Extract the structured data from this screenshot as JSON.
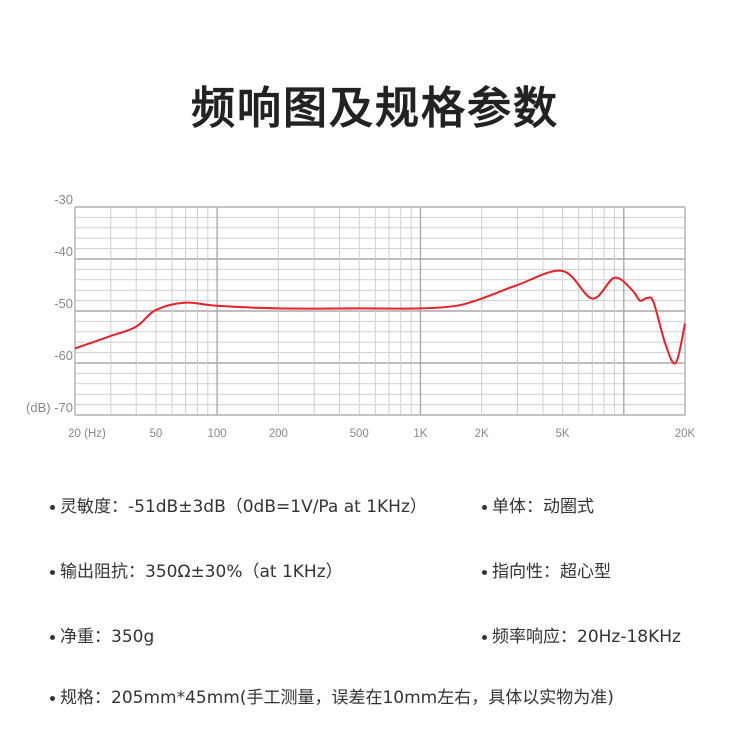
{
  "title": "频响图及规格参数",
  "chart_data": {
    "type": "line",
    "title": "",
    "xlabel": "",
    "ylabel": "",
    "x_scale": "log",
    "xlim": [
      20,
      20000
    ],
    "ylim": [
      -70,
      -30
    ],
    "grid": true,
    "x_tick_labels": [
      {
        "value": 20,
        "label": "20 (Hz)"
      },
      {
        "value": 50,
        "label": "50"
      },
      {
        "value": 100,
        "label": "100"
      },
      {
        "value": 200,
        "label": "200"
      },
      {
        "value": 500,
        "label": "500"
      },
      {
        "value": 1000,
        "label": "1K"
      },
      {
        "value": 2000,
        "label": "2K"
      },
      {
        "value": 5000,
        "label": "5K"
      },
      {
        "value": 20000,
        "label": "20K"
      }
    ],
    "y_tick_labels": [
      {
        "value": -30,
        "label": "-30"
      },
      {
        "value": -40,
        "label": "-40"
      },
      {
        "value": -50,
        "label": "-50"
      },
      {
        "value": -60,
        "label": "-60"
      },
      {
        "value": -70,
        "label": "(dB) -70"
      }
    ],
    "series": [
      {
        "color": "#e8202a",
        "x": [
          20,
          30,
          40,
          50,
          70,
          100,
          200,
          500,
          1000,
          1500,
          2000,
          3000,
          5000,
          7000,
          9000,
          11000,
          12000,
          13000,
          14000,
          16000,
          18000,
          20000
        ],
        "y": [
          -57.2,
          -54.8,
          -53,
          -49.8,
          -48.4,
          -49,
          -49.5,
          -49.5,
          -49.5,
          -49,
          -47.6,
          -45,
          -42.3,
          -47.6,
          -43.6,
          -46,
          -48,
          -47.5,
          -48.3,
          -56.3,
          -60,
          -52.4
        ]
      }
    ]
  },
  "specs": [
    {
      "text": "灵敏度：-51dB±3dB（0dB=1V/Pa at 1KHz）"
    },
    {
      "text": "单体：动圈式"
    },
    {
      "text": "输出阻抗：350Ω±30%（at 1KHz）"
    },
    {
      "text": "指向性：超心型"
    },
    {
      "text": "净重：350g"
    },
    {
      "text": "频率响应：20Hz-18KHz"
    },
    {
      "text": "规格：205mm*45mm(手工测量，误差在10mm左右，具体以实物为准)"
    }
  ]
}
